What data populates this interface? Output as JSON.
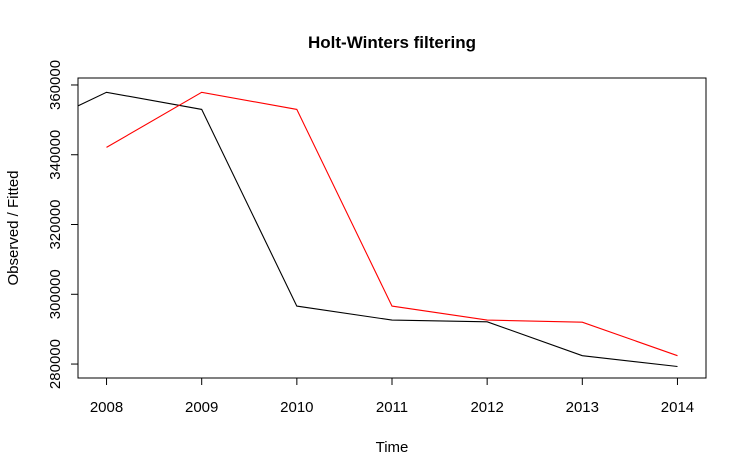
{
  "chart_data": {
    "type": "line",
    "title": "Holt-Winters filtering",
    "xlabel": "Time",
    "ylabel": "Observed / Fitted",
    "xlim": [
      2007.7,
      2014.3
    ],
    "ylim": [
      276000,
      362000
    ],
    "x_ticks": [
      2008,
      2009,
      2010,
      2011,
      2012,
      2013,
      2014
    ],
    "y_ticks": [
      280000,
      300000,
      320000,
      340000,
      360000
    ],
    "grid": false,
    "legend": "none",
    "series": [
      {
        "color": "#000000",
        "x": [
          2007.7,
          2008,
          2009,
          2010,
          2011,
          2012,
          2013,
          2014
        ],
        "y": [
          354000,
          357900,
          353000,
          296600,
          292600,
          292100,
          282400,
          279300
        ]
      },
      {
        "color": "#ff0000",
        "x": [
          2008,
          2009,
          2010,
          2011,
          2012,
          2013,
          2014
        ],
        "y": [
          342100,
          357900,
          353000,
          296600,
          292600,
          292000,
          282400
        ]
      }
    ]
  }
}
